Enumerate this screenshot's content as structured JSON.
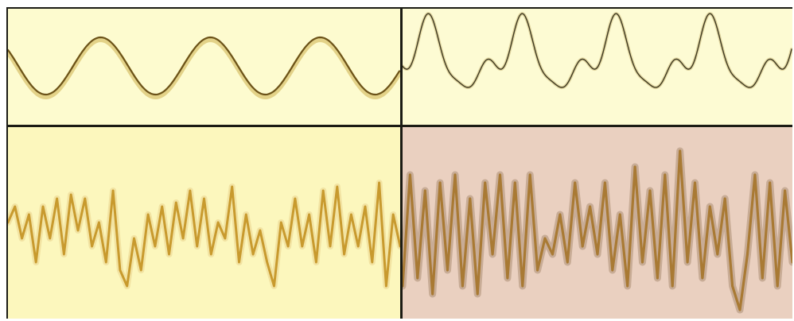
{
  "panels": {
    "top_left": {
      "background": "#fdfbcf",
      "stroke": "#6b5218",
      "glow": "#d7c06a"
    },
    "top_right": {
      "background": "#fdfbd3",
      "stroke": "#3f3a22",
      "glow": "#c9b774"
    },
    "bottom_left": {
      "background": "#fcf7bd",
      "stroke": "#c89a2e",
      "glow": "#e7cf88"
    },
    "bottom_right": {
      "background": "#ead0c0",
      "stroke": "#a97a34",
      "glow": "#8a6a48"
    }
  }
}
